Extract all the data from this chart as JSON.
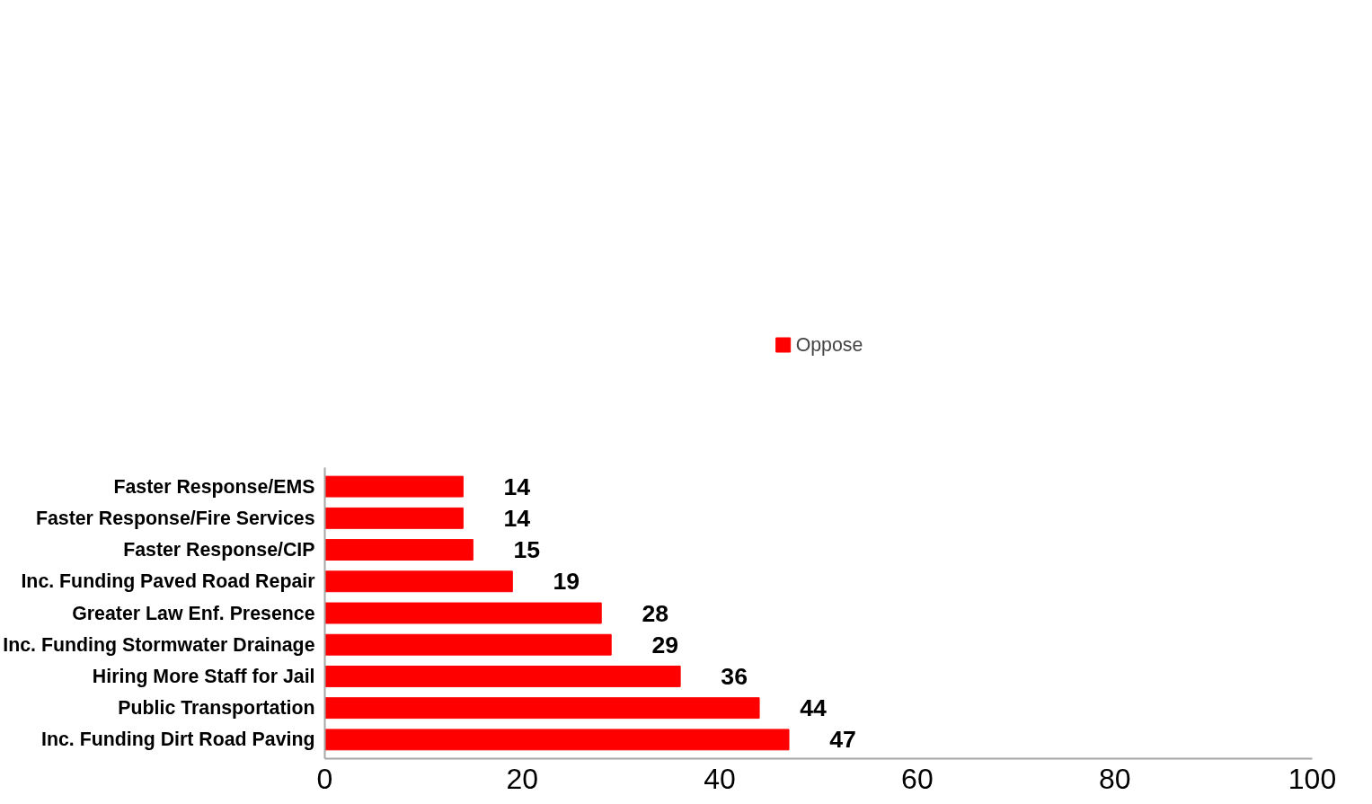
{
  "chart_data": {
    "type": "bar",
    "orientation": "horizontal",
    "categories": [
      "Faster Response/EMS",
      "Faster Response/Fire Services",
      "Faster Response/CIP",
      "Inc. Funding Paved Road Repair",
      "Greater Law Enf. Presence",
      "Inc. Funding Stormwater Drainage",
      "Hiring More Staff for Jail",
      "Public Transportation",
      "Inc. Funding Dirt Road Paving"
    ],
    "series": [
      {
        "name": "Oppose",
        "color": "#ff0000",
        "values": [
          14,
          14,
          15,
          19,
          28,
          29,
          36,
          44,
          47
        ]
      }
    ],
    "xlim": [
      0,
      100
    ],
    "xticks": [
      0,
      20,
      40,
      60,
      80,
      100
    ],
    "data_labels": true,
    "legend": "top",
    "grid": false
  }
}
